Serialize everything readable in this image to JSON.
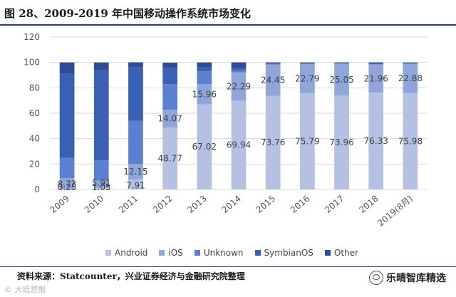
{
  "figure": {
    "title": "图 28、2009-2019 年中国移动操作系统市场变化",
    "source": "资料来源：Statcounter，兴业证券经济与金融研究院整理",
    "watermark_left": "© 大纸营报",
    "watermark_right": "乐晴智库精选"
  },
  "chart_data": {
    "type": "bar",
    "stacked": true,
    "title": "",
    "xlabel": "",
    "ylabel": "",
    "ylim": [
      0,
      120
    ],
    "yticks": [
      0,
      20,
      40,
      60,
      80,
      100,
      120
    ],
    "grid": true,
    "legend_position": "bottom",
    "categories": [
      "2009",
      "2010",
      "2011",
      "2012",
      "2013",
      "2014",
      "2015",
      "2016",
      "2017",
      "2018",
      "2019(8月)"
    ],
    "series": [
      {
        "name": "Android",
        "color": "#b4c1e3",
        "values": [
          0.25,
          1.05,
          7.91,
          48.77,
          67.02,
          69.94,
          73.76,
          75.79,
          73.96,
          76.33,
          75.98
        ]
      },
      {
        "name": "iOS",
        "color": "#90a6db",
        "values": [
          8.73,
          5.91,
          12.15,
          14.07,
          15.96,
          22.29,
          24.45,
          22.79,
          25.05,
          21.96,
          22.88
        ]
      },
      {
        "name": "Unknown",
        "color": "#5b80cf",
        "values": [
          16,
          16,
          34,
          20,
          10,
          1.5,
          0.6,
          0.6,
          0.3,
          0.6,
          0.4
        ]
      },
      {
        "name": "SymbianOS",
        "color": "#3a60b5",
        "values": [
          66,
          71,
          42,
          13,
          3,
          1.5,
          0.3,
          0.2,
          0.1,
          0.1,
          0.1
        ]
      },
      {
        "name": "Other",
        "color": "#2e4c92",
        "values": [
          9,
          6,
          4,
          4,
          4,
          4.8,
          0.9,
          0.6,
          0.6,
          1.0,
          0.6
        ]
      }
    ],
    "data_labels": [
      {
        "category": "2009",
        "series": "iOS",
        "text": "8.73"
      },
      {
        "category": "2009",
        "series": "Android",
        "text": "0.25"
      },
      {
        "category": "2010",
        "series": "iOS",
        "text": "5.91"
      },
      {
        "category": "2010",
        "series": "Android",
        "text": "1.05"
      },
      {
        "category": "2011",
        "series": "iOS",
        "text": "12.15"
      },
      {
        "category": "2011",
        "series": "Android",
        "text": "7.91"
      },
      {
        "category": "2012",
        "series": "iOS",
        "text": "14.07"
      },
      {
        "category": "2012",
        "series": "Android",
        "text": "48.77"
      },
      {
        "category": "2013",
        "series": "iOS",
        "text": "15.96"
      },
      {
        "category": "2013",
        "series": "Android",
        "text": "67.02"
      },
      {
        "category": "2014",
        "series": "iOS",
        "text": "22.29"
      },
      {
        "category": "2014",
        "series": "Android",
        "text": "69.94"
      },
      {
        "category": "2015",
        "series": "iOS",
        "text": "24.45"
      },
      {
        "category": "2015",
        "series": "Android",
        "text": "73.76"
      },
      {
        "category": "2016",
        "series": "iOS",
        "text": "22.79"
      },
      {
        "category": "2016",
        "series": "Android",
        "text": "75.79"
      },
      {
        "category": "2017",
        "series": "iOS",
        "text": "25.05"
      },
      {
        "category": "2017",
        "series": "Android",
        "text": "73.96"
      },
      {
        "category": "2018",
        "series": "iOS",
        "text": "21.96"
      },
      {
        "category": "2018",
        "series": "Android",
        "text": "76.33"
      },
      {
        "category": "2019(8月)",
        "series": "iOS",
        "text": "22.88"
      },
      {
        "category": "2019(8月)",
        "series": "Android",
        "text": "75.98"
      }
    ]
  }
}
